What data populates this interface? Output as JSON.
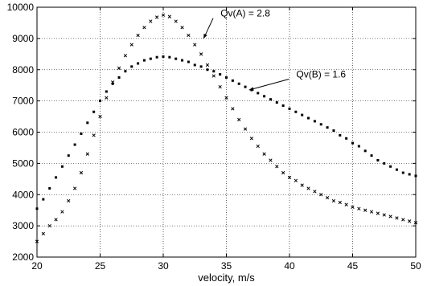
{
  "chart_data": {
    "type": "scatter",
    "title": "",
    "xlabel": "velocity, m/s",
    "ylabel": "",
    "xlim": [
      20,
      50
    ],
    "ylim": [
      2000,
      10000
    ],
    "xticks": [
      20,
      25,
      30,
      35,
      40,
      45,
      50
    ],
    "yticks": [
      2000,
      3000,
      4000,
      5000,
      6000,
      7000,
      8000,
      9000,
      10000
    ],
    "xtick_labels": [
      "20",
      "25",
      "30",
      "35",
      "40",
      "45",
      "50"
    ],
    "ytick_labels": [
      "2000",
      "3000",
      "4000",
      "5000",
      "6000",
      "7000",
      "8000",
      "9000",
      "10000"
    ],
    "grid": true,
    "legend": "none",
    "series": [
      {
        "label_key": "A",
        "color": "#000000",
        "marker": "x",
        "x": [
          20,
          20.5,
          21,
          21.5,
          22,
          22.5,
          23,
          23.5,
          24,
          24.5,
          25,
          25.5,
          26,
          26.5,
          27,
          27.5,
          28,
          28.5,
          29,
          29.5,
          30,
          30.5,
          31,
          31.5,
          32,
          32.5,
          33,
          33.5,
          34,
          34.5,
          35,
          35.5,
          36,
          36.5,
          37,
          37.5,
          38,
          38.5,
          39,
          39.5,
          40,
          40.5,
          41,
          41.5,
          42,
          42.5,
          43,
          43.5,
          44,
          44.5,
          45,
          45.5,
          46,
          46.5,
          47,
          47.5,
          48,
          48.5,
          49,
          49.5,
          50
        ],
        "y": [
          2500,
          2750,
          3000,
          3200,
          3450,
          3800,
          4200,
          4700,
          5300,
          5900,
          6500,
          7100,
          7600,
          8050,
          8450,
          8800,
          9100,
          9350,
          9550,
          9680,
          9750,
          9700,
          9550,
          9350,
          9100,
          8800,
          8500,
          8150,
          7800,
          7450,
          7100,
          6750,
          6400,
          6100,
          5800,
          5550,
          5300,
          5100,
          4900,
          4700,
          4550,
          4450,
          4300,
          4200,
          4100,
          4000,
          3900,
          3800,
          3750,
          3680,
          3600,
          3550,
          3500,
          3450,
          3400,
          3350,
          3300,
          3250,
          3200,
          3150,
          3100
        ]
      },
      {
        "label_key": "B",
        "color": "#000000",
        "marker": "dot",
        "x": [
          20,
          20.5,
          21,
          21.5,
          22,
          22.5,
          23,
          23.5,
          24,
          24.5,
          25,
          25.5,
          26,
          26.5,
          27,
          27.5,
          28,
          28.5,
          29,
          29.5,
          30,
          30.5,
          31,
          31.5,
          32,
          32.5,
          33,
          33.5,
          34,
          34.5,
          35,
          35.5,
          36,
          36.5,
          37,
          37.5,
          38,
          38.5,
          39,
          39.5,
          40,
          40.5,
          41,
          41.5,
          42,
          42.5,
          43,
          43.5,
          44,
          44.5,
          45,
          45.5,
          46,
          46.5,
          47,
          47.5,
          48,
          48.5,
          49,
          49.5,
          50
        ],
        "y": [
          3550,
          3850,
          4200,
          4550,
          4900,
          5250,
          5600,
          5950,
          6300,
          6650,
          7000,
          7300,
          7550,
          7750,
          7950,
          8100,
          8200,
          8300,
          8350,
          8400,
          8420,
          8400,
          8350,
          8300,
          8250,
          8150,
          8100,
          8000,
          7950,
          7850,
          7750,
          7650,
          7550,
          7450,
          7350,
          7250,
          7150,
          7050,
          6950,
          6850,
          6750,
          6650,
          6550,
          6450,
          6350,
          6250,
          6150,
          6050,
          5900,
          5800,
          5650,
          5550,
          5400,
          5250,
          5100,
          5000,
          4900,
          4800,
          4700,
          4650,
          4600
        ]
      }
    ],
    "annotations": [
      {
        "text": "Qv(A) = 2.8",
        "series": "A",
        "point": [
          33.2,
          9000
        ],
        "label_at": [
          36.5,
          9700
        ]
      },
      {
        "text": "Qv(B) = 1.6",
        "series": "B",
        "point": [
          36.8,
          7350
        ],
        "label_at": [
          42.5,
          7750
        ]
      }
    ]
  }
}
